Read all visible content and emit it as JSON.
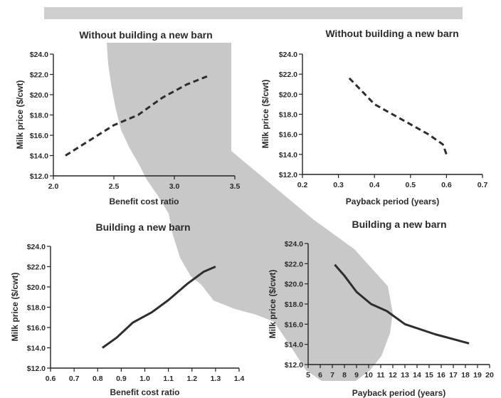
{
  "colors": {
    "background_map": "#c8c8c8",
    "top_bar": "#cfcfcf",
    "line": "#2e2e2e"
  },
  "chart_data": [
    {
      "type": "line",
      "id": "tl",
      "title": "Without building a new barn",
      "xlabel": "Benefit cost ratio",
      "ylabel": "Milk price ($/cwt)",
      "xlim": [
        2.0,
        3.5
      ],
      "ylim": [
        12.0,
        24.0
      ],
      "xticks": [
        2.0,
        2.5,
        3.0,
        3.5
      ],
      "xtick_labels": [
        "2.0",
        "2.5",
        "3.0",
        "3.5"
      ],
      "yticks": [
        12,
        14,
        16,
        18,
        20,
        22,
        24
      ],
      "ytick_labels": [
        "$12.0",
        "$14.0",
        "$16.0",
        "$18.0",
        "$20.0",
        "$22.0",
        "$24.0"
      ],
      "line_style": "dashed",
      "series": [
        {
          "x": [
            2.1,
            2.3,
            2.5,
            2.7,
            2.9,
            3.1,
            3.27
          ],
          "y": [
            14,
            15.5,
            17,
            18,
            19.7,
            21,
            21.8
          ]
        }
      ]
    },
    {
      "type": "line",
      "id": "tr",
      "title": "Without building a new barn",
      "xlabel": "Payback period (years)",
      "ylabel": "Milk price ($/cwt)",
      "xlim": [
        0.2,
        0.7
      ],
      "ylim": [
        12.0,
        24.0
      ],
      "xticks": [
        0.2,
        0.3,
        0.4,
        0.5,
        0.6,
        0.7
      ],
      "xtick_labels": [
        "0.2",
        "0.3",
        "0.4",
        "0.5",
        "0.6",
        "0.7"
      ],
      "yticks": [
        12,
        14,
        16,
        18,
        20,
        22,
        24
      ],
      "ytick_labels": [
        "$12.0",
        "$14.0",
        "$16.0",
        "$18.0",
        "$20.0",
        "$22.0",
        "$24.0"
      ],
      "line_style": "dashed",
      "series": [
        {
          "x": [
            0.33,
            0.36,
            0.4,
            0.45,
            0.5,
            0.55,
            0.59,
            0.6
          ],
          "y": [
            21.6,
            20.5,
            19,
            18,
            17,
            16,
            15,
            14
          ]
        }
      ]
    },
    {
      "type": "line",
      "id": "bl",
      "title": "Building a new barn",
      "xlabel": "Benefit cost ratio",
      "ylabel": "Milk price ($/cwt)",
      "xlim": [
        0.6,
        1.4
      ],
      "ylim": [
        12.0,
        24.0
      ],
      "xticks": [
        0.6,
        0.7,
        0.8,
        0.9,
        1.0,
        1.1,
        1.2,
        1.3,
        1.4
      ],
      "xtick_labels": [
        "0.6",
        "0.7",
        "0.8",
        "0.9",
        "1.0",
        "1.1",
        "1.2",
        "1.3",
        "1.4"
      ],
      "yticks": [
        12,
        14,
        16,
        18,
        20,
        22,
        24
      ],
      "ytick_labels": [
        "$12.0",
        "$14.0",
        "$16.0",
        "$18.0",
        "$20.0",
        "$22.0",
        "$24.0"
      ],
      "line_style": "solid",
      "series": [
        {
          "x": [
            0.82,
            0.88,
            0.95,
            1.03,
            1.1,
            1.18,
            1.25,
            1.3
          ],
          "y": [
            14,
            15,
            16.5,
            17.5,
            18.7,
            20.3,
            21.5,
            22
          ]
        }
      ]
    },
    {
      "type": "line",
      "id": "br",
      "title": "Building a new barn",
      "xlabel": "Payback period (years)",
      "ylabel": "Milk price ($/cwt)",
      "xlim": [
        5,
        20
      ],
      "ylim": [
        12.0,
        24.0
      ],
      "xticks": [
        5,
        6,
        7,
        8,
        9,
        10,
        11,
        12,
        13,
        14,
        15,
        16,
        17,
        18,
        19,
        20
      ],
      "xtick_labels": [
        "5",
        "6",
        "7",
        "8",
        "9",
        "10",
        "11",
        "12",
        "13",
        "14",
        "15",
        "16",
        "17",
        "18",
        "19",
        "20"
      ],
      "yticks": [
        12,
        14,
        16,
        18,
        20,
        22,
        24
      ],
      "ytick_labels": [
        "$12.0",
        "$14.0",
        "$16.0",
        "$18.0",
        "$20.0",
        "$22.0",
        "$24.0"
      ],
      "line_style": "solid",
      "series": [
        {
          "x": [
            7.2,
            8.0,
            9.0,
            10.2,
            11.5,
            13.0,
            15.5,
            18.3
          ],
          "y": [
            21.9,
            20.8,
            19.2,
            18,
            17.3,
            16,
            15,
            14.1
          ]
        }
      ]
    }
  ]
}
